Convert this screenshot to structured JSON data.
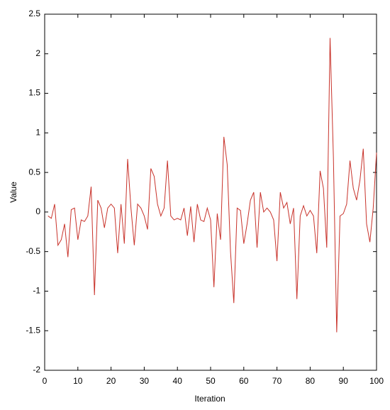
{
  "chart_data": {
    "type": "line",
    "x_label": "Iteration",
    "y_label": "Value",
    "x": [
      1,
      2,
      3,
      4,
      5,
      6,
      7,
      8,
      9,
      10,
      11,
      12,
      13,
      14,
      15,
      16,
      17,
      18,
      19,
      20,
      21,
      22,
      23,
      24,
      25,
      26,
      27,
      28,
      29,
      30,
      31,
      32,
      33,
      34,
      35,
      36,
      37,
      38,
      39,
      40,
      41,
      42,
      43,
      44,
      45,
      46,
      47,
      48,
      49,
      50,
      51,
      52,
      53,
      54,
      55,
      56,
      57,
      58,
      59,
      60,
      61,
      62,
      63,
      64,
      65,
      66,
      67,
      68,
      69,
      70,
      71,
      72,
      73,
      74,
      75,
      76,
      77,
      78,
      79,
      80,
      81,
      82,
      83,
      84,
      85,
      86,
      87,
      88,
      89,
      90,
      91,
      92,
      93,
      94,
      95,
      96,
      97,
      98,
      99,
      100
    ],
    "series": [
      {
        "color": "#c8322a",
        "values": [
          -0.05,
          -0.08,
          0.1,
          -0.42,
          -0.35,
          -0.15,
          -0.57,
          0.03,
          0.05,
          -0.35,
          -0.1,
          -0.12,
          -0.05,
          0.32,
          -1.05,
          0.15,
          0.05,
          -0.2,
          0.05,
          0.1,
          0.05,
          -0.52,
          0.1,
          -0.4,
          0.67,
          0.05,
          -0.42,
          0.1,
          0.05,
          -0.05,
          -0.22,
          0.55,
          0.45,
          0.1,
          -0.05,
          0.05,
          0.65,
          -0.05,
          -0.1,
          -0.08,
          -0.1,
          0.05,
          -0.3,
          0.07,
          -0.38,
          0.1,
          -0.1,
          -0.12,
          0.05,
          -0.1,
          -0.95,
          -0.02,
          -0.35,
          0.95,
          0.6,
          -0.5,
          -1.15,
          0.05,
          0.02,
          -0.4,
          -0.15,
          0.15,
          0.25,
          -0.45,
          0.25,
          0,
          0.05,
          0,
          -0.1,
          -0.62,
          0.25,
          0.05,
          0.12,
          -0.15,
          0.05,
          -1.1,
          -0.05,
          0.08,
          -0.05,
          0.02,
          -0.05,
          -0.52,
          0.52,
          0.3,
          -0.45,
          2.2,
          0.7,
          -1.52,
          -0.05,
          -0.02,
          0.1,
          0.65,
          0.3,
          0.15,
          0.4,
          0.8,
          -0.15,
          -0.38,
          0.05,
          0.75
        ]
      }
    ],
    "xlim": [
      0,
      100
    ],
    "xticks": [
      0,
      10,
      20,
      30,
      40,
      50,
      60,
      70,
      80,
      90,
      100
    ],
    "ylim": [
      -2,
      2.5
    ],
    "yticks": [
      -2,
      -1.5,
      -1,
      -0.5,
      0,
      0.5,
      1,
      1.5,
      2,
      2.5
    ]
  }
}
